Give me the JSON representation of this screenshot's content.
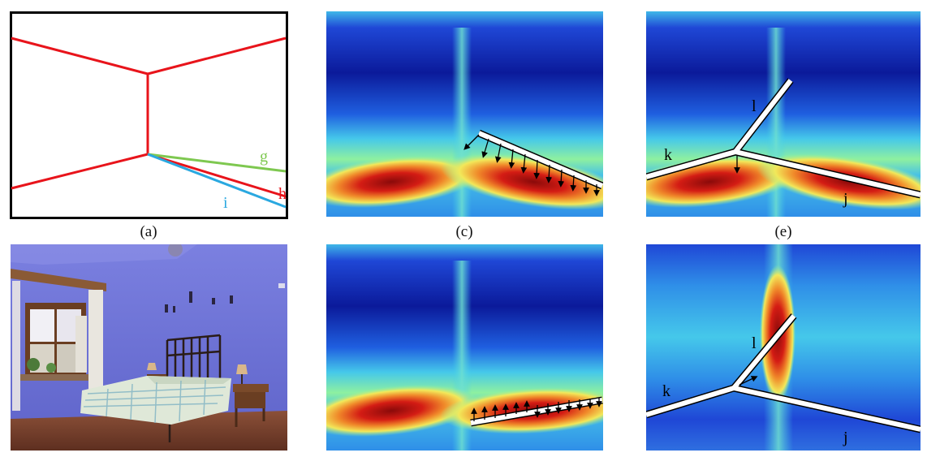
{
  "captions": {
    "a": "(a)",
    "c": "(c)",
    "e": "(e)"
  },
  "panel_a": {
    "labels": {
      "g": "g",
      "h": "h",
      "i": "i"
    },
    "colors": {
      "red": "#e8141b",
      "green": "#7ec850",
      "blue": "#2aa8e0",
      "frame": "#000000"
    }
  },
  "heatmap_labels": {
    "c_top": {},
    "e_top": {
      "k": "k",
      "l": "l",
      "j": "j"
    },
    "d_bottom": {},
    "f_bottom": {
      "k": "k",
      "l": "l",
      "j": "j"
    }
  },
  "photo": {
    "wall_color": "#6f74d6",
    "bed_cover": "#dfe8d8",
    "floor_color": "#7a4633"
  },
  "heatmap_palette": [
    "#0b1a8c",
    "#1f47d6",
    "#2f8fe8",
    "#45d0e8",
    "#8ef0a0",
    "#f2e85a",
    "#f08a2a",
    "#d41c14",
    "#8a0a0a"
  ]
}
